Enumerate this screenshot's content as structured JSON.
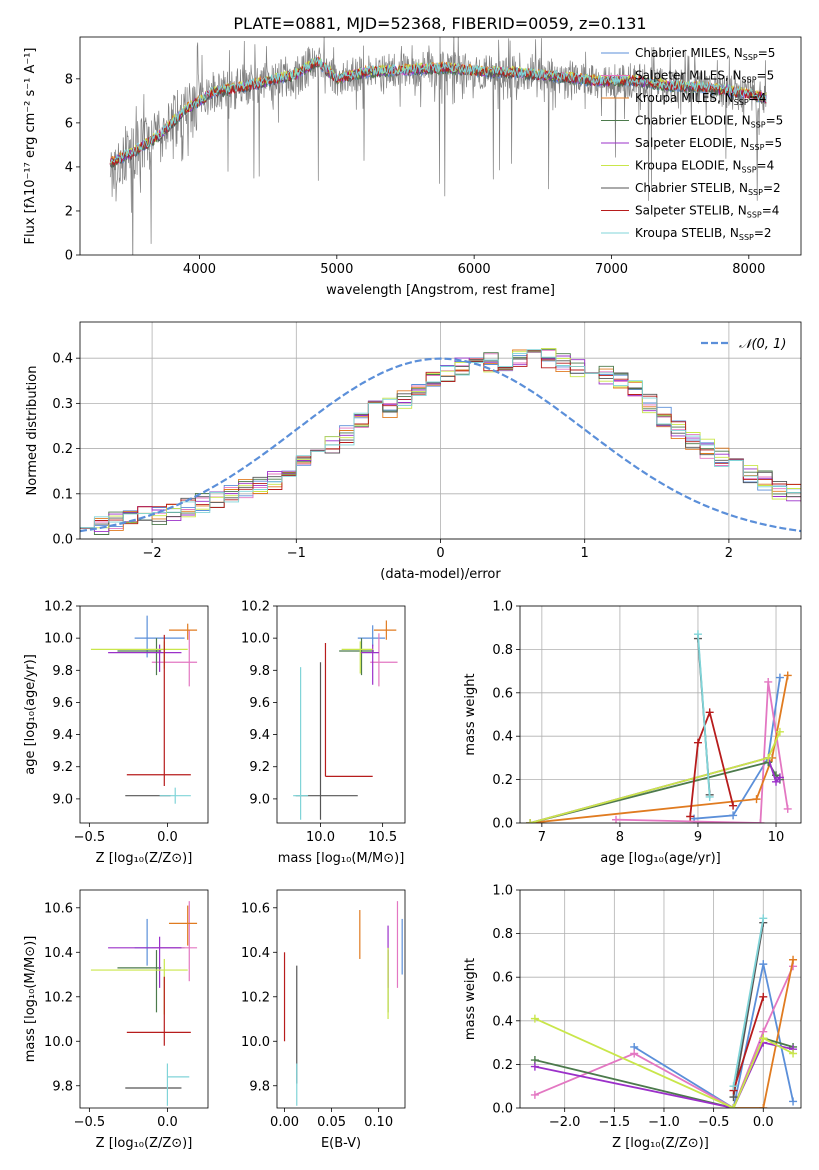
{
  "figure_title": "PLATE=0881, MJD=52368, FIBERID=0059, z=0.131",
  "colors": {
    "Chabrier MILES": "#5b8fd9",
    "Salpeter MILES": "#e377c2",
    "Kroupa MILES": "#e07b20",
    "Chabrier ELODIE": "#4c7a4c",
    "Salpeter ELODIE": "#9b30c9",
    "Kroupa ELODIE": "#c9e64a",
    "Chabrier STELIB": "#555555",
    "Salpeter STELIB": "#b71c1c",
    "Kroupa STELIB": "#80d4d8"
  },
  "chart_data": [
    {
      "id": "spectrum",
      "type": "line",
      "title": "PLATE=0881, MJD=52368, FIBERID=0059, z=0.131",
      "xlabel": "wavelength [Angstrom, rest frame]",
      "ylabel": "Flux [fλ10⁻¹⁷ erg cm⁻² s⁻¹ A⁻¹]",
      "xlim": [
        3130,
        8380
      ],
      "ylim": [
        0,
        9.9
      ],
      "xticks": [
        4000,
        5000,
        6000,
        7000,
        8000
      ],
      "yticks": [
        0,
        2,
        4,
        6,
        8
      ],
      "legend_position": "top-right",
      "legend": [
        {
          "label": "Chabrier MILES, N",
          "sub": "SSP",
          "suffix": "=5",
          "series": "Chabrier MILES"
        },
        {
          "label": "Salpeter MILES, N",
          "sub": "SSP",
          "suffix": "=5",
          "series": "Salpeter MILES"
        },
        {
          "label": "Kroupa MILES, N",
          "sub": "SSP",
          "suffix": "=4",
          "series": "Kroupa MILES"
        },
        {
          "label": "Chabrier ELODIE, N",
          "sub": "SSP",
          "suffix": "=5",
          "series": "Chabrier ELODIE"
        },
        {
          "label": "Salpeter ELODIE, N",
          "sub": "SSP",
          "suffix": "=5",
          "series": "Salpeter ELODIE"
        },
        {
          "label": "Kroupa ELODIE, N",
          "sub": "SSP",
          "suffix": "=4",
          "series": "Kroupa ELODIE"
        },
        {
          "label": "Chabrier STELIB, N",
          "sub": "SSP",
          "suffix": "=2",
          "series": "Chabrier STELIB"
        },
        {
          "label": "Salpeter STELIB, N",
          "sub": "SSP",
          "suffix": "=4",
          "series": "Salpeter STELIB"
        },
        {
          "label": "Kroupa STELIB, N",
          "sub": "SSP",
          "suffix": "=2",
          "series": "Kroupa STELIB"
        }
      ],
      "continuum": {
        "x": [
          3350,
          3500,
          3700,
          3900,
          4100,
          4300,
          4500,
          4700,
          4860,
          5000,
          5200,
          5500,
          5800,
          6100,
          6300,
          6600,
          6900,
          7200,
          7400,
          7700,
          8000,
          8130
        ],
        "y": [
          4.2,
          4.6,
          5.4,
          6.6,
          7.4,
          7.6,
          7.9,
          8.2,
          8.8,
          8.0,
          8.3,
          8.4,
          8.5,
          8.3,
          8.3,
          8.1,
          7.9,
          7.9,
          7.7,
          7.6,
          7.3,
          7.1
        ]
      },
      "data_range": [
        3350,
        8130
      ],
      "data_color": "#808080"
    },
    {
      "id": "residual-histogram",
      "type": "step",
      "xlabel": "(data-model)/error",
      "ylabel": "Normed distribution",
      "xlim": [
        -2.5,
        2.5
      ],
      "ylim": [
        0,
        0.48
      ],
      "xticks": [
        -2,
        -1,
        0,
        1,
        2
      ],
      "yticks": [
        0.0,
        0.1,
        0.2,
        0.3,
        0.4
      ],
      "grid": true,
      "legend_position": "top-right",
      "reference_label": "𝒩(0, 1)",
      "reference_color": "#5b8fd9",
      "bin_width": 0.1,
      "bin_start": -2.5,
      "base_profile": [
        0.03,
        0.03,
        0.04,
        0.05,
        0.05,
        0.05,
        0.06,
        0.07,
        0.08,
        0.09,
        0.1,
        0.11,
        0.12,
        0.13,
        0.15,
        0.17,
        0.19,
        0.21,
        0.23,
        0.26,
        0.29,
        0.29,
        0.31,
        0.33,
        0.35,
        0.37,
        0.38,
        0.39,
        0.39,
        0.38,
        0.4,
        0.41,
        0.4,
        0.39,
        0.38,
        0.37,
        0.36,
        0.35,
        0.33,
        0.3,
        0.27,
        0.24,
        0.22,
        0.2,
        0.18,
        0.16,
        0.14,
        0.13,
        0.11,
        0.1,
        0.09,
        0.08,
        0.07,
        0.06,
        0.05,
        0.05,
        0.04,
        0.04,
        0.04,
        0.04
      ]
    },
    {
      "id": "age-vs-Z",
      "type": "errorbar",
      "xlabel": "Z [log₁₀(Z/Z⊙)]",
      "ylabel": "age  [log₁₀(age/yr)]",
      "xlim": [
        -0.56,
        0.26
      ],
      "ylim": [
        8.85,
        10.2
      ],
      "xticks": [
        -0.5,
        0.0
      ],
      "yticks": [
        9.0,
        9.2,
        9.4,
        9.6,
        9.8,
        10.0,
        10.2
      ],
      "points": [
        {
          "s": "Chabrier MILES",
          "x": -0.13,
          "xe": [
            0.08,
            0.24
          ],
          "y": 10.0,
          "ye": [
            0.12,
            0.14
          ]
        },
        {
          "s": "Salpeter MILES",
          "x": 0.14,
          "xe": [
            0.24,
            0.05
          ],
          "y": 9.85,
          "ye": [
            0.15,
            0.2
          ]
        },
        {
          "s": "Kroupa MILES",
          "x": 0.13,
          "xe": [
            0.12,
            0.06
          ],
          "y": 10.05,
          "ye": [
            0.06,
            0.04
          ]
        },
        {
          "s": "Chabrier ELODIE",
          "x": -0.07,
          "xe": [
            0.25,
            0.03
          ],
          "y": 9.92,
          "ye": [
            0.15,
            0.08
          ]
        },
        {
          "s": "Salpeter ELODIE",
          "x": -0.05,
          "xe": [
            0.33,
            0.14
          ],
          "y": 9.91,
          "ye": [
            0.12,
            0.05
          ]
        },
        {
          "s": "Kroupa ELODIE",
          "x": -0.02,
          "xe": [
            0.47,
            0.15
          ],
          "y": 9.93,
          "ye": [
            0.12,
            0.05
          ]
        },
        {
          "s": "Chabrier STELIB",
          "x": -0.03,
          "xe": [
            0.24,
            0.05
          ],
          "y": 9.02,
          "ye": [
            0.0,
            0.0
          ]
        },
        {
          "s": "Salpeter STELIB",
          "x": -0.02,
          "xe": [
            0.24,
            0.17
          ],
          "y": 9.15,
          "ye": [
            0.07,
            0.87
          ]
        },
        {
          "s": "Kroupa STELIB",
          "x": 0.05,
          "xe": [
            0.1,
            0.1
          ],
          "y": 9.02,
          "ye": [
            0.05,
            0.05
          ]
        }
      ]
    },
    {
      "id": "age-vs-mass",
      "type": "errorbar",
      "xlabel": "mass [log₁₀(M/M⊙)]",
      "ylabel": "",
      "xlim": [
        9.65,
        10.68
      ],
      "ylim": [
        8.85,
        10.2
      ],
      "xticks": [
        10.0,
        10.5
      ],
      "yticks": [
        9.0,
        9.2,
        9.4,
        9.6,
        9.8,
        10.0,
        10.2
      ],
      "points": [
        {
          "s": "Chabrier MILES",
          "x": 10.42,
          "xe": [
            0.12,
            0.1
          ],
          "y": 10.0,
          "ye": [
            0.05,
            0.08
          ]
        },
        {
          "s": "Salpeter MILES",
          "x": 10.47,
          "xe": [
            0.07,
            0.15
          ],
          "y": 9.85,
          "ye": [
            0.15,
            0.18
          ]
        },
        {
          "s": "Kroupa MILES",
          "x": 10.53,
          "xe": [
            0.1,
            0.08
          ],
          "y": 10.05,
          "ye": [
            0.06,
            0.06
          ]
        },
        {
          "s": "Chabrier ELODIE",
          "x": 10.33,
          "xe": [
            0.18,
            0.1
          ],
          "y": 9.92,
          "ye": [
            0.15,
            0.08
          ]
        },
        {
          "s": "Salpeter ELODIE",
          "x": 10.42,
          "xe": [
            0.1,
            0.05
          ],
          "y": 9.91,
          "ye": [
            0.2,
            0.05
          ]
        },
        {
          "s": "Kroupa ELODIE",
          "x": 10.32,
          "xe": [
            0.15,
            0.1
          ],
          "y": 9.93,
          "ye": [
            0.15,
            0.05
          ]
        },
        {
          "s": "Chabrier STELIB",
          "x": 10.0,
          "xe": [
            0.2,
            0.3
          ],
          "y": 9.02,
          "ye": [
            0.15,
            0.83
          ]
        },
        {
          "s": "Salpeter STELIB",
          "x": 10.04,
          "xe": [
            0.0,
            0.38
          ],
          "y": 9.14,
          "ye": [
            0.0,
            0.83
          ]
        },
        {
          "s": "Kroupa STELIB",
          "x": 9.84,
          "xe": [
            0.06,
            0.06
          ],
          "y": 9.02,
          "ye": [
            0.15,
            0.8
          ]
        }
      ]
    },
    {
      "id": "weight-vs-age",
      "type": "line",
      "xlabel": "age  [log₁₀(age/yr)]",
      "ylabel": "mass weight",
      "xlim": [
        6.72,
        10.32
      ],
      "ylim": [
        0,
        1.0
      ],
      "xticks": [
        7,
        8,
        9,
        10
      ],
      "yticks": [
        0.0,
        0.2,
        0.4,
        0.6,
        0.8,
        1.0
      ],
      "grid": true,
      "series": [
        {
          "s": "Chabrier MILES",
          "x": [
            8.95,
            9.45,
            9.9,
            10.05
          ],
          "y": [
            0.02,
            0.035,
            0.3,
            0.67
          ]
        },
        {
          "s": "Salpeter MILES",
          "x": [
            7.95,
            9.8,
            9.9,
            10.15
          ],
          "y": [
            0.015,
            0.0,
            0.65,
            0.065
          ]
        },
        {
          "s": "Kroupa MILES",
          "x": [
            6.85,
            9.75,
            9.95,
            10.15
          ],
          "y": [
            0.0,
            0.11,
            0.3,
            0.68
          ]
        },
        {
          "s": "Chabrier ELODIE",
          "x": [
            6.85,
            9.9,
            10.0,
            10.05
          ],
          "y": [
            0.0,
            0.28,
            0.22,
            0.2
          ]
        },
        {
          "s": "Salpeter ELODIE",
          "x": [
            6.85,
            9.9,
            10.0,
            10.05
          ],
          "y": [
            0.0,
            0.3,
            0.19,
            0.21
          ]
        },
        {
          "s": "Kroupa ELODIE",
          "x": [
            6.85,
            9.9,
            10.05
          ],
          "y": [
            0.0,
            0.3,
            0.42
          ]
        },
        {
          "s": "Chabrier STELIB",
          "x": [
            9.0,
            9.15
          ],
          "y": [
            0.85,
            0.13
          ]
        },
        {
          "s": "Salpeter STELIB",
          "x": [
            8.9,
            9.0,
            9.15,
            9.45
          ],
          "y": [
            0.03,
            0.37,
            0.51,
            0.08
          ]
        },
        {
          "s": "Kroupa STELIB",
          "x": [
            9.0,
            9.15
          ],
          "y": [
            0.87,
            0.12
          ]
        }
      ]
    },
    {
      "id": "mass-vs-Z",
      "type": "errorbar",
      "xlabel": "Z [log₁₀(Z/Z⊙)]",
      "ylabel": "mass [log₁₀(M/M⊙)]",
      "xlim": [
        -0.56,
        0.26
      ],
      "ylim": [
        9.7,
        10.68
      ],
      "xticks": [
        -0.5,
        0.0
      ],
      "yticks": [
        9.8,
        10.0,
        10.2,
        10.4,
        10.6
      ],
      "points": [
        {
          "s": "Chabrier MILES",
          "x": -0.13,
          "xe": [
            0.08,
            0.24
          ],
          "y": 10.42,
          "ye": [
            0.08,
            0.13
          ]
        },
        {
          "s": "Salpeter MILES",
          "x": 0.14,
          "xe": [
            0.24,
            0.05
          ],
          "y": 10.42,
          "ye": [
            0.15,
            0.21
          ]
        },
        {
          "s": "Kroupa MILES",
          "x": 0.13,
          "xe": [
            0.12,
            0.06
          ],
          "y": 10.53,
          "ye": [
            0.1,
            0.08
          ]
        },
        {
          "s": "Chabrier ELODIE",
          "x": -0.07,
          "xe": [
            0.25,
            0.03
          ],
          "y": 10.33,
          "ye": [
            0.2,
            0.08
          ]
        },
        {
          "s": "Salpeter ELODIE",
          "x": -0.05,
          "xe": [
            0.33,
            0.14
          ],
          "y": 10.42,
          "ye": [
            0.18,
            0.05
          ]
        },
        {
          "s": "Kroupa ELODIE",
          "x": -0.02,
          "xe": [
            0.47,
            0.15
          ],
          "y": 10.32,
          "ye": [
            0.2,
            0.05
          ]
        },
        {
          "s": "Chabrier STELIB",
          "x": -0.03,
          "xe": [
            0.24,
            0.12
          ],
          "y": 9.79,
          "ye": [
            0.0,
            0.0
          ]
        },
        {
          "s": "Salpeter STELIB",
          "x": -0.02,
          "xe": [
            0.24,
            0.17
          ],
          "y": 10.04,
          "ye": [
            0.06,
            0.25
          ]
        },
        {
          "s": "Kroupa STELIB",
          "x": 0.0,
          "xe": [
            0.0,
            0.14
          ],
          "y": 9.84,
          "ye": [
            0.13,
            0.06
          ]
        }
      ]
    },
    {
      "id": "mass-vs-ebv",
      "type": "errorbar",
      "xlabel": "E(B-V)",
      "ylabel": "",
      "xlim": [
        -0.008,
        0.128
      ],
      "ylim": [
        9.7,
        10.68
      ],
      "xticks": [
        0.0,
        0.05,
        0.1
      ],
      "yticks": [
        9.8,
        10.0,
        10.2,
        10.4,
        10.6
      ],
      "points": [
        {
          "s": "Chabrier MILES",
          "x": 0.125,
          "xe": [
            0.0,
            0.0
          ],
          "y": 10.42,
          "ye": [
            0.12,
            0.13
          ]
        },
        {
          "s": "Salpeter MILES",
          "x": 0.12,
          "xe": [
            0.0,
            0.0
          ],
          "y": 10.42,
          "ye": [
            0.18,
            0.21
          ]
        },
        {
          "s": "Kroupa MILES",
          "x": 0.08,
          "xe": [
            0.0,
            0.0
          ],
          "y": 10.48,
          "ye": [
            0.11,
            0.11
          ]
        },
        {
          "s": "Chabrier ELODIE",
          "x": 0.11,
          "xe": [
            0.0,
            0.0
          ],
          "y": 10.33,
          "ye": [
            0.2,
            0.08
          ]
        },
        {
          "s": "Salpeter ELODIE",
          "x": 0.11,
          "xe": [
            0.0,
            0.0
          ],
          "y": 10.42,
          "ye": [
            0.18,
            0.1
          ]
        },
        {
          "s": "Kroupa ELODIE",
          "x": 0.11,
          "xe": [
            0.0,
            0.0
          ],
          "y": 10.32,
          "ye": [
            0.22,
            0.1
          ]
        },
        {
          "s": "Chabrier STELIB",
          "x": 0.013,
          "xe": [
            0.0,
            0.0
          ],
          "y": 10.09,
          "ye": [
            0.28,
            0.25
          ]
        },
        {
          "s": "Salpeter STELIB",
          "x": 0.0,
          "xe": [
            0.0,
            0.0
          ],
          "y": 10.2,
          "ye": [
            0.2,
            0.2
          ]
        },
        {
          "s": "Kroupa STELIB",
          "x": 0.013,
          "xe": [
            0.0,
            0.0
          ],
          "y": 9.84,
          "ye": [
            0.13,
            0.06
          ]
        }
      ]
    },
    {
      "id": "weight-vs-Z",
      "type": "line",
      "xlabel": "Z [log₁₀(Z/Z⊙)]",
      "ylabel": "mass weight",
      "xlim": [
        -2.45,
        0.38
      ],
      "ylim": [
        0,
        1.0
      ],
      "xticks": [
        -2.0,
        -1.5,
        -1.0,
        -0.5,
        0.0
      ],
      "yticks": [
        0.0,
        0.2,
        0.4,
        0.6,
        0.8,
        1.0
      ],
      "grid": true,
      "series": [
        {
          "s": "Chabrier MILES",
          "x": [
            -1.3,
            -0.3,
            0.0,
            0.3
          ],
          "y": [
            0.28,
            0.0,
            0.66,
            0.03
          ]
        },
        {
          "s": "Salpeter MILES",
          "x": [
            -2.3,
            -1.3,
            -0.3,
            0.0,
            0.3
          ],
          "y": [
            0.06,
            0.25,
            0.0,
            0.35,
            0.65
          ]
        },
        {
          "s": "Kroupa MILES",
          "x": [
            -0.3,
            0.0,
            0.3
          ],
          "y": [
            0.0,
            0.0,
            0.68
          ]
        },
        {
          "s": "Chabrier ELODIE",
          "x": [
            -2.3,
            -0.3,
            0.0,
            0.3
          ],
          "y": [
            0.22,
            0.0,
            0.32,
            0.28
          ]
        },
        {
          "s": "Salpeter ELODIE",
          "x": [
            -2.3,
            -0.3,
            0.0,
            0.3
          ],
          "y": [
            0.19,
            0.0,
            0.3,
            0.27
          ]
        },
        {
          "s": "Kroupa ELODIE",
          "x": [
            -2.3,
            -0.3,
            0.0,
            0.3
          ],
          "y": [
            0.41,
            0.0,
            0.32,
            0.25
          ]
        },
        {
          "s": "Chabrier STELIB",
          "x": [
            -0.3,
            0.0
          ],
          "y": [
            0.05,
            0.85
          ]
        },
        {
          "s": "Salpeter STELIB",
          "x": [
            -0.3,
            0.0
          ],
          "y": [
            0.08,
            0.51
          ]
        },
        {
          "s": "Kroupa STELIB",
          "x": [
            -0.3,
            0.0
          ],
          "y": [
            0.1,
            0.87
          ]
        }
      ]
    }
  ]
}
